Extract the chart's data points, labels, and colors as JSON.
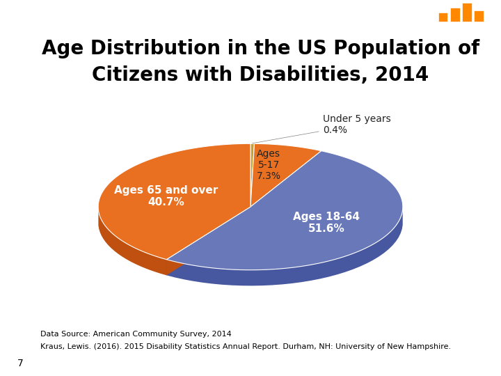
{
  "title_line1": "Age Distribution in the US Population of",
  "title_line2": "Citizens with Disabilities, 2014",
  "slices": [
    0.4,
    7.3,
    51.6,
    40.7
  ],
  "slice_colors": [
    "#C8A030",
    "#E87020",
    "#6878B8",
    "#E87020"
  ],
  "slice_colors_dark": [
    "#A07818",
    "#C05010",
    "#4858A0",
    "#C05010"
  ],
  "label_under5": "Under 5 years\n0.4%",
  "label_517": "Ages\n5-17\n7.3%",
  "label_1864": "Ages 18-64\n51.6%",
  "label_65": "Ages 65 and over\n40.7%",
  "background_color": "#FFFFFF",
  "header_color": "#0D1C6B",
  "left_bar_color": "#1A2E8C",
  "footer_text_1": "Data Source: American Community Survey, 2014",
  "footer_text_2": "Kraus, Lewis. (2016). 2015 Disability Statistics Annual Report. Durham, NH: University of New Hampshire.",
  "page_number": "7",
  "title_fontsize": 20,
  "label_fontsize": 10,
  "footer_fontsize": 8
}
